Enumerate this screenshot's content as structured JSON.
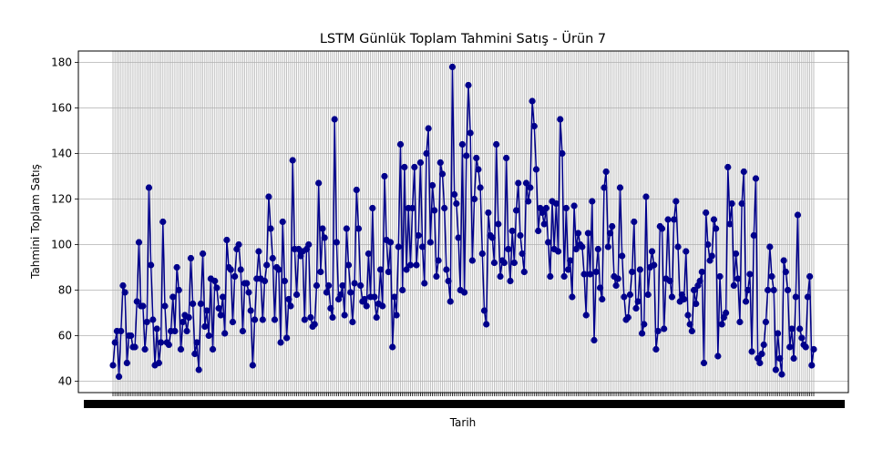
{
  "chart_data": {
    "type": "line",
    "title": "LSTM Günlük Toplam Tahmini Satış - Ürün 7",
    "xlabel": "Tarih",
    "ylabel": "Tahmini Toplam Satış",
    "ylim": [
      35,
      185
    ],
    "yticks": [
      40,
      60,
      80,
      100,
      120,
      140,
      160,
      180
    ],
    "grid": true,
    "x_tick_labels_note": "x tick labels are overlapping date strings and are illegible in the image",
    "series": [
      {
        "marker": "circle",
        "color": "#00008b",
        "values": [
          47,
          57,
          62,
          42,
          62,
          82,
          79,
          48,
          60,
          60,
          55,
          55,
          75,
          101,
          73,
          73,
          54,
          66,
          125,
          91,
          67,
          47,
          63,
          48,
          57,
          110,
          73,
          57,
          56,
          62,
          77,
          62,
          90,
          80,
          54,
          66,
          69,
          62,
          68,
          94,
          74,
          52,
          57,
          45,
          74,
          96,
          64,
          71,
          60,
          85,
          54,
          84,
          81,
          72,
          69,
          77,
          61,
          102,
          90,
          89,
          66,
          86,
          98,
          100,
          89,
          62,
          83,
          83,
          79,
          71,
          47,
          67,
          85,
          97,
          85,
          67,
          84,
          91,
          121,
          107,
          94,
          67,
          90,
          89,
          57,
          110,
          84,
          59,
          76,
          73,
          137,
          98,
          78,
          98,
          95,
          97,
          67,
          98,
          100,
          68,
          64,
          65,
          82,
          127,
          88,
          107,
          103,
          79,
          82,
          72,
          68,
          155,
          101,
          76,
          78,
          82,
          69,
          107,
          91,
          79,
          66,
          83,
          124,
          107,
          82,
          75,
          76,
          73,
          96,
          77,
          116,
          77,
          68,
          74,
          89,
          73,
          130,
          102,
          88,
          101,
          55,
          77,
          69,
          99,
          144,
          80,
          134,
          89,
          116,
          91,
          116,
          134,
          91,
          104,
          136,
          99,
          83,
          140,
          151,
          101,
          126,
          115,
          86,
          93,
          136,
          131,
          116,
          89,
          84,
          75,
          178,
          122,
          118,
          103,
          80,
          144,
          79,
          139,
          170,
          149,
          93,
          120,
          138,
          133,
          125,
          96,
          71,
          65,
          114,
          104,
          103,
          92,
          144,
          109,
          86,
          93,
          92,
          138,
          98,
          84,
          106,
          92,
          115,
          127,
          104,
          96,
          88,
          127,
          119,
          125,
          163,
          152,
          133,
          106,
          116,
          114,
          109,
          116,
          101,
          86,
          119,
          98,
          118,
          97,
          155,
          140,
          86,
          116,
          89,
          93,
          77,
          117,
          98,
          105,
          100,
          99,
          87,
          69,
          105,
          87,
          119,
          58,
          88,
          98,
          81,
          76,
          125,
          132,
          99,
          105,
          108,
          86,
          82,
          85,
          125,
          95,
          77,
          67,
          68,
          78,
          88,
          110,
          72,
          75,
          89,
          61,
          65,
          121,
          78,
          90,
          97,
          91,
          54,
          62,
          108,
          107,
          63,
          85,
          111,
          84,
          77,
          111,
          119,
          99,
          75,
          78,
          76,
          97,
          69,
          65,
          62,
          80,
          74,
          82,
          84,
          88,
          48,
          114,
          100,
          93,
          95,
          111,
          107,
          51,
          86,
          65,
          68,
          70,
          134,
          109,
          118,
          82,
          96,
          85,
          66,
          118,
          132,
          75,
          80,
          87,
          53,
          104,
          129,
          50,
          48,
          52,
          56,
          66,
          80,
          99,
          86,
          80,
          45,
          61,
          50,
          43,
          93,
          88,
          80,
          55,
          63,
          50,
          77,
          113,
          63,
          59,
          56,
          55,
          77,
          86,
          47,
          54
        ]
      }
    ]
  }
}
